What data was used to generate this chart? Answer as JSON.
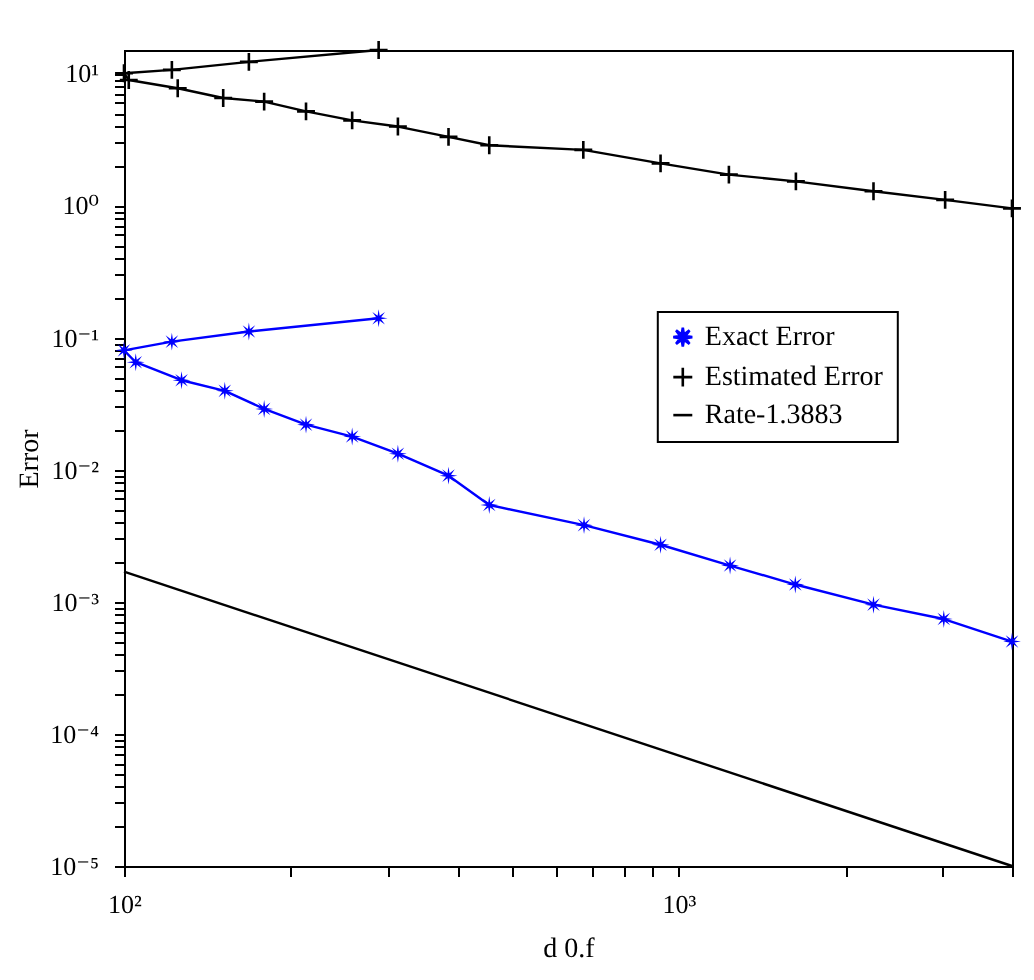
{
  "chart_data": {
    "type": "line",
    "xlabel": "d 0.f",
    "ylabel": "Error",
    "log": "xy",
    "grid": false,
    "legend": "right",
    "xlim": [
      100,
      4000
    ],
    "ylim": [
      1e-05,
      15
    ],
    "xticks": [
      {
        "value": 100,
        "label": "10²"
      },
      {
        "value": 200,
        "label": null
      },
      {
        "value": 300,
        "label": null
      },
      {
        "value": 400,
        "label": null
      },
      {
        "value": 500,
        "label": null
      },
      {
        "value": 600,
        "label": null
      },
      {
        "value": 700,
        "label": null
      },
      {
        "value": 800,
        "label": null
      },
      {
        "value": 900,
        "label": null
      },
      {
        "value": 1000,
        "label": "10³"
      },
      {
        "value": 2000,
        "label": null
      },
      {
        "value": 3000,
        "label": null
      },
      {
        "value": 4000,
        "label": null
      }
    ],
    "yticks": [
      {
        "value": 1e-05,
        "label": "10⁻⁵"
      },
      {
        "value": 2e-05,
        "label": null
      },
      {
        "value": 3e-05,
        "label": null
      },
      {
        "value": 4e-05,
        "label": null
      },
      {
        "value": 5e-05,
        "label": null
      },
      {
        "value": 6e-05,
        "label": null
      },
      {
        "value": 7e-05,
        "label": null
      },
      {
        "value": 8e-05,
        "label": null
      },
      {
        "value": 9e-05,
        "label": null
      },
      {
        "value": 0.0001,
        "label": "10⁻⁴"
      },
      {
        "value": 0.0002,
        "label": null
      },
      {
        "value": 0.0003,
        "label": null
      },
      {
        "value": 0.0004,
        "label": null
      },
      {
        "value": 0.0005,
        "label": null
      },
      {
        "value": 0.0006,
        "label": null
      },
      {
        "value": 0.0007,
        "label": null
      },
      {
        "value": 0.0008,
        "label": null
      },
      {
        "value": 0.0009,
        "label": null
      },
      {
        "value": 0.001,
        "label": "10⁻³"
      },
      {
        "value": 0.002,
        "label": null
      },
      {
        "value": 0.003,
        "label": null
      },
      {
        "value": 0.004,
        "label": null
      },
      {
        "value": 0.005,
        "label": null
      },
      {
        "value": 0.006,
        "label": null
      },
      {
        "value": 0.007,
        "label": null
      },
      {
        "value": 0.008,
        "label": null
      },
      {
        "value": 0.009,
        "label": null
      },
      {
        "value": 0.01,
        "label": "10⁻²"
      },
      {
        "value": 0.02,
        "label": null
      },
      {
        "value": 0.03,
        "label": null
      },
      {
        "value": 0.04,
        "label": null
      },
      {
        "value": 0.05,
        "label": null
      },
      {
        "value": 0.06,
        "label": null
      },
      {
        "value": 0.07,
        "label": null
      },
      {
        "value": 0.08,
        "label": null
      },
      {
        "value": 0.09,
        "label": null
      },
      {
        "value": 0.1,
        "label": "10⁻¹"
      },
      {
        "value": 0.2,
        "label": null
      },
      {
        "value": 0.3,
        "label": null
      },
      {
        "value": 0.4,
        "label": null
      },
      {
        "value": 0.5,
        "label": null
      },
      {
        "value": 0.6,
        "label": null
      },
      {
        "value": 0.7,
        "label": null
      },
      {
        "value": 0.8,
        "label": null
      },
      {
        "value": 0.9,
        "label": null
      },
      {
        "value": 1,
        "label": "10⁰"
      },
      {
        "value": 2,
        "label": null
      },
      {
        "value": 3,
        "label": null
      },
      {
        "value": 4,
        "label": null
      },
      {
        "value": 5,
        "label": null
      },
      {
        "value": 6,
        "label": null
      },
      {
        "value": 7,
        "label": null
      },
      {
        "value": 8,
        "label": null
      },
      {
        "value": 9,
        "label": null
      },
      {
        "value": 10,
        "label": "10¹"
      }
    ],
    "series": [
      {
        "name": "Exact Error",
        "color": "#0000ff",
        "marker": "star",
        "x": [
          288,
          168,
          122,
          100,
          105,
          127,
          152,
          179,
          213,
          258,
          312,
          385,
          456,
          676,
          929,
          1240,
          1626,
          2250,
          3013,
          4000
        ],
        "values": [
          0.14,
          0.111,
          0.093,
          0.08,
          0.065,
          0.0475,
          0.0395,
          0.0288,
          0.0219,
          0.0178,
          0.0132,
          0.009,
          0.0054,
          0.0038,
          0.0027,
          0.00188,
          0.00135,
          0.00095,
          0.00074,
          0.0005
        ]
      },
      {
        "name": "Estimated Error",
        "color": "#000000",
        "marker": "cross",
        "x": [
          288,
          168,
          122,
          100,
          102,
          125,
          151,
          179,
          213,
          258,
          312,
          385,
          456,
          674,
          929,
          1234,
          1630,
          2250,
          3030,
          4000
        ],
        "values": [
          15,
          12.2,
          10.6,
          10,
          8.9,
          7.7,
          6.5,
          6.1,
          5.15,
          4.4,
          3.95,
          3.3,
          2.85,
          2.63,
          2.08,
          1.71,
          1.52,
          1.28,
          1.1,
          0.95
        ]
      },
      {
        "name": "Rate-1.3883",
        "color": "#000000",
        "marker": "none",
        "x": [
          100,
          4000
        ],
        "values": [
          0.00169,
          1e-05
        ]
      }
    ]
  }
}
